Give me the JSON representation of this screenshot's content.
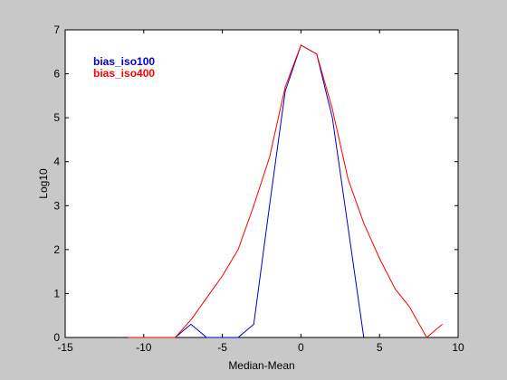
{
  "chart_data": {
    "type": "line",
    "xlabel": "Median-Mean",
    "ylabel": "Log10",
    "xlim": [
      -15,
      10
    ],
    "ylim": [
      0,
      7
    ],
    "xticks": [
      "-15",
      "-10",
      "-5",
      "0",
      "5",
      "10"
    ],
    "yticks": [
      "0",
      "1",
      "2",
      "3",
      "4",
      "5",
      "6",
      "7"
    ],
    "grid": false,
    "legend_position": "top-left",
    "series": [
      {
        "name": "bias_iso100",
        "color": "#0000c8",
        "x": [
          -8,
          -7,
          -6,
          -5,
          -4,
          -3,
          -2,
          -1,
          0,
          1,
          2,
          3,
          4
        ],
        "y": [
          0,
          0.3,
          0,
          0,
          0,
          0.3,
          3.0,
          5.6,
          6.65,
          6.45,
          5.0,
          2.5,
          0
        ]
      },
      {
        "name": "bias_iso400",
        "color": "#ff0000",
        "x": [
          -11,
          -8,
          -7,
          -6,
          -5,
          -4,
          -3,
          -2,
          -1,
          0,
          1,
          2,
          3,
          4,
          5,
          6,
          6.9,
          8,
          9
        ],
        "y": [
          0,
          0,
          0.4,
          0.9,
          1.4,
          2.0,
          3.0,
          4.1,
          5.7,
          6.65,
          6.45,
          5.2,
          3.6,
          2.6,
          1.8,
          1.1,
          0.7,
          0,
          0.3
        ]
      }
    ]
  }
}
